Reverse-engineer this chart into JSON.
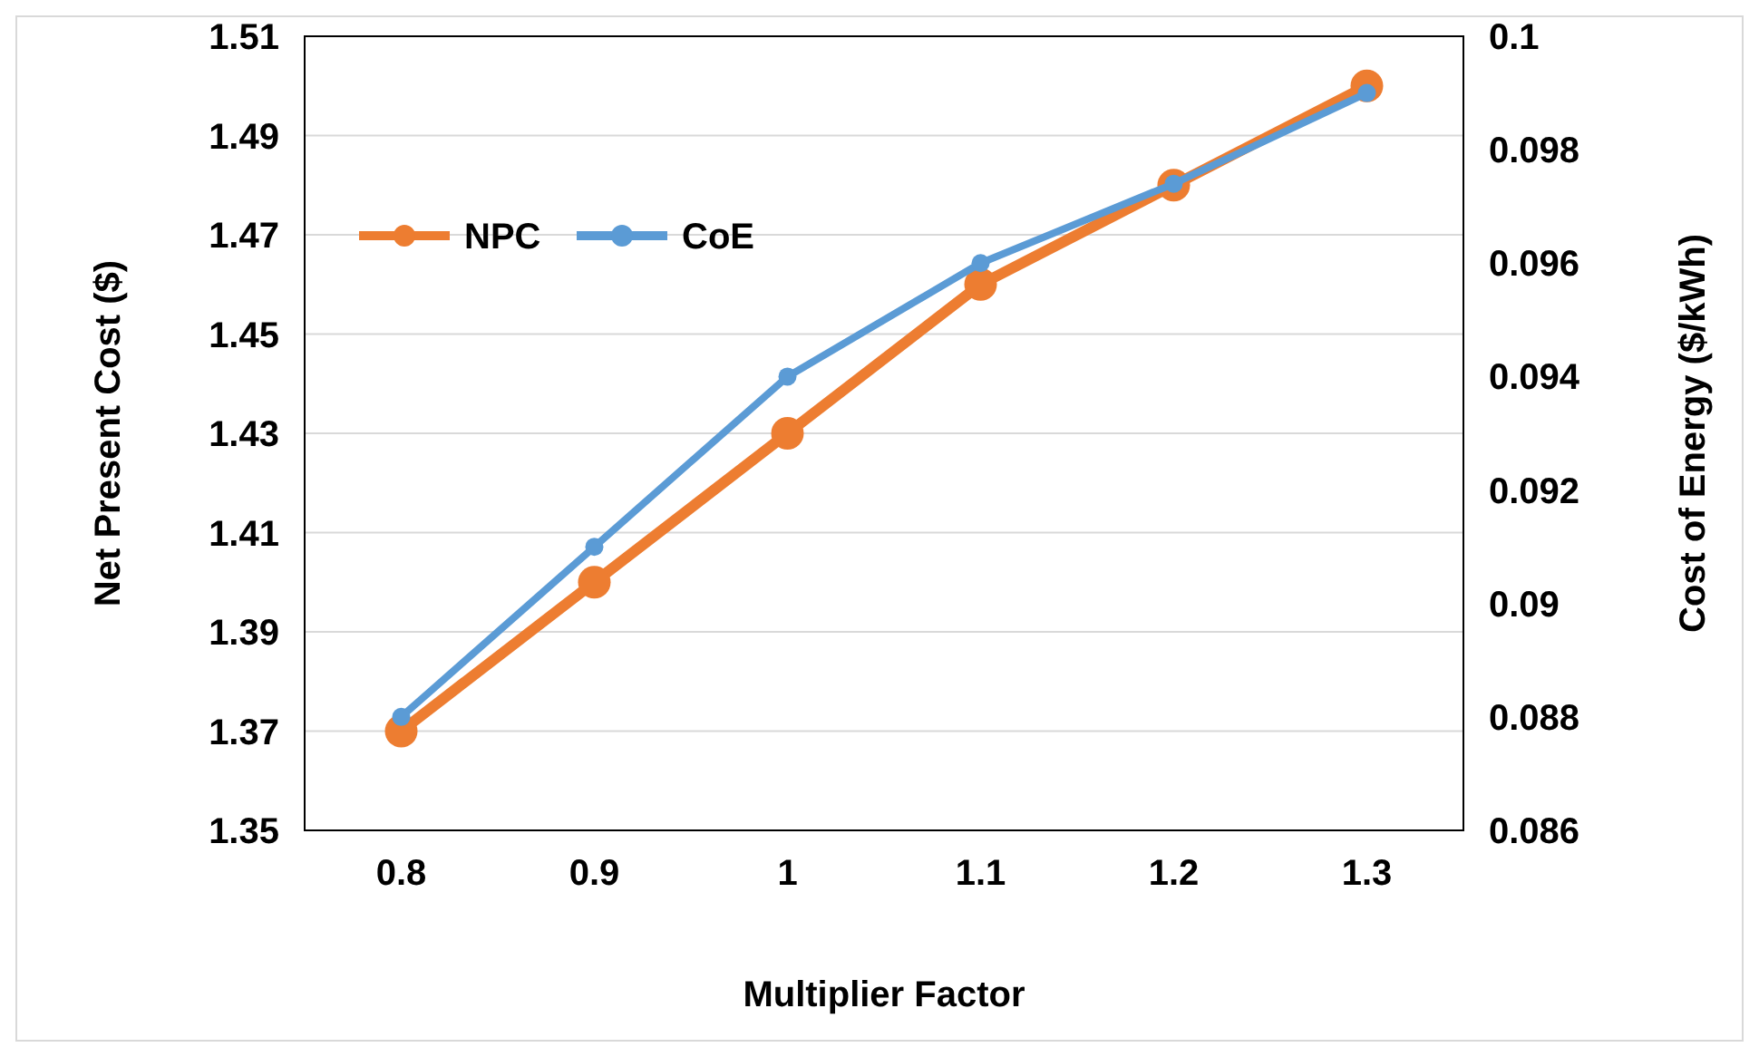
{
  "chart_data": {
    "type": "line",
    "xlabel": "Multiplier Factor",
    "ylabel": "Net Present Cost ($)",
    "y2label": "Cost of Energy ($/kWh)",
    "categories": [
      "0.8",
      "0.9",
      "1",
      "1.1",
      "1.2",
      "1.3"
    ],
    "series": [
      {
        "name": "NPC",
        "color": "#ed7d31",
        "values": [
          1.37,
          1.4,
          1.43,
          1.46,
          1.48,
          1.5
        ]
      },
      {
        "name": "CoE",
        "color": "#5b9bd5",
        "axis": "y2",
        "values": [
          0.088,
          0.091,
          0.094,
          0.096,
          0.0974,
          0.099
        ]
      }
    ],
    "ylim": [
      1.35,
      1.51
    ],
    "yticks": [
      1.35,
      1.37,
      1.39,
      1.41,
      1.43,
      1.45,
      1.47,
      1.49,
      1.51
    ],
    "y2lim": [
      0.086,
      0.1
    ],
    "y2ticks": [
      0.086,
      0.088,
      {
        "value": 0.09,
        "label": "0.09"
      },
      0.092,
      0.094,
      0.096,
      0.098,
      {
        "value": 0.1,
        "label": "0.1"
      }
    ],
    "legend": "top left",
    "marker": "circle",
    "line_style": "solid",
    "grid": "y"
  }
}
